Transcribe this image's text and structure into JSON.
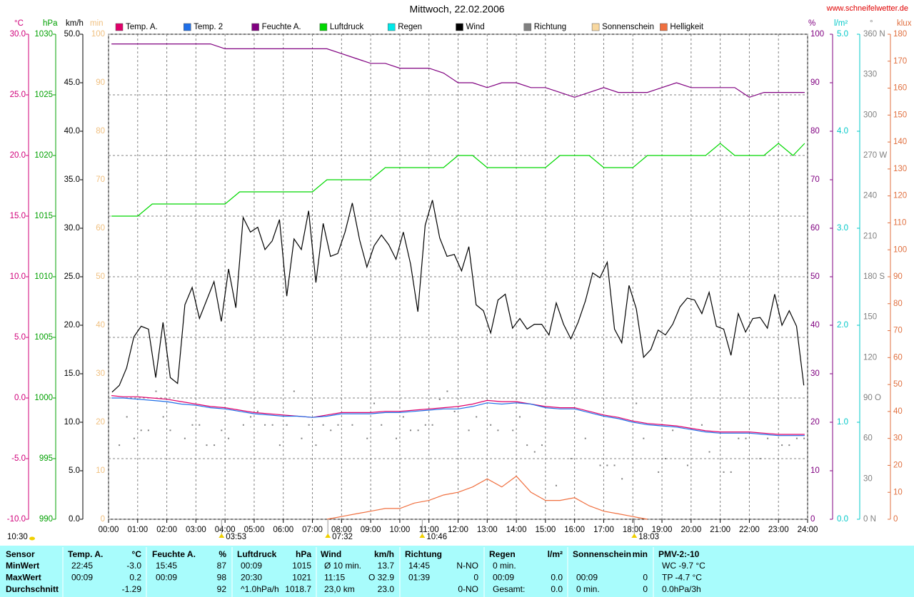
{
  "chart_data": {
    "type": "line",
    "title": "Mittwoch, 22.02.2006",
    "source": "www.schneifelwetter.de",
    "grid": true,
    "grid_axis": "temp",
    "xlim": [
      0,
      24
    ],
    "xticks": [
      {
        "value": 0,
        "label": "00:00"
      },
      {
        "value": 1,
        "label": "01:00"
      },
      {
        "value": 2,
        "label": "02:00"
      },
      {
        "value": 3,
        "label": "03:00"
      },
      {
        "value": 4,
        "label": "04:00"
      },
      {
        "value": 5,
        "label": "05:00"
      },
      {
        "value": 6,
        "label": "06:00"
      },
      {
        "value": 7,
        "label": "07:00"
      },
      {
        "value": 8,
        "label": "08:00"
      },
      {
        "value": 9,
        "label": "09:00"
      },
      {
        "value": 10,
        "label": "10:00"
      },
      {
        "value": 11,
        "label": "11:00"
      },
      {
        "value": 12,
        "label": "12:00"
      },
      {
        "value": 13,
        "label": "13:00"
      },
      {
        "value": 14,
        "label": "14:00"
      },
      {
        "value": 15,
        "label": "15:00"
      },
      {
        "value": 16,
        "label": "16:00"
      },
      {
        "value": 17,
        "label": "17:00"
      },
      {
        "value": 18,
        "label": "18:00"
      },
      {
        "value": 19,
        "label": "19:00"
      },
      {
        "value": 20,
        "label": "20:00"
      },
      {
        "value": 21,
        "label": "21:00"
      },
      {
        "value": 22,
        "label": "22:00"
      },
      {
        "value": 23,
        "label": "23:00"
      },
      {
        "value": 24,
        "label": "24:00"
      }
    ],
    "axes": {
      "temp": {
        "unit": "°C",
        "color": "#d0007a",
        "lim": [
          -10,
          30
        ],
        "ticks": [
          {
            "value": -10,
            "label": "-10.0"
          },
          {
            "value": -5,
            "label": "-5.0"
          },
          {
            "value": 0,
            "label": "0.0"
          },
          {
            "value": 5,
            "label": "5.0"
          },
          {
            "value": 10,
            "label": "10.0"
          },
          {
            "value": 15,
            "label": "15.0"
          },
          {
            "value": 20,
            "label": "20.0"
          },
          {
            "value": 25,
            "label": "25.0"
          },
          {
            "value": 30,
            "label": "30.0"
          }
        ]
      },
      "hpa": {
        "unit": "hPa",
        "color": "#00a000",
        "lim": [
          990,
          1030
        ],
        "ticks": [
          990,
          995,
          1000,
          1005,
          1010,
          1015,
          1020,
          1025,
          1030
        ]
      },
      "kmh": {
        "unit": "km/h",
        "color": "#000000",
        "lim": [
          0,
          50
        ],
        "ticks": [
          {
            "value": 0,
            "label": "0.0"
          },
          {
            "value": 5,
            "label": "5.0"
          },
          {
            "value": 10,
            "label": "10.0"
          },
          {
            "value": 15,
            "label": "15.0"
          },
          {
            "value": 20,
            "label": "20.0"
          },
          {
            "value": 25,
            "label": "25.0"
          },
          {
            "value": 30,
            "label": "30.0"
          },
          {
            "value": 35,
            "label": "35.0"
          },
          {
            "value": 40,
            "label": "40.0"
          },
          {
            "value": 45,
            "label": "45.0"
          },
          {
            "value": 50,
            "label": "50.0"
          }
        ]
      },
      "min": {
        "unit": "min",
        "color": "#f0c080",
        "lim": [
          0,
          100
        ],
        "ticks": [
          0,
          10,
          20,
          30,
          40,
          50,
          60,
          70,
          80,
          90,
          100
        ]
      },
      "pct": {
        "unit": "%",
        "color": "#800080",
        "lim": [
          0,
          100
        ],
        "ticks": [
          0,
          10,
          20,
          30,
          40,
          50,
          60,
          70,
          80,
          90,
          100
        ]
      },
      "rain": {
        "unit": "l/m²",
        "color": "#00c8c8",
        "lim": [
          0,
          5
        ],
        "ticks": [
          {
            "value": 0,
            "label": "0.0"
          },
          {
            "value": 1,
            "label": "1.0"
          },
          {
            "value": 2,
            "label": "2.0"
          },
          {
            "value": 3,
            "label": "3.0"
          },
          {
            "value": 4,
            "label": "4.0"
          },
          {
            "value": 5,
            "label": "5.0"
          }
        ]
      },
      "deg": {
        "unit": "°",
        "color": "#808080",
        "lim": [
          0,
          360
        ],
        "ticks": [
          {
            "value": 0,
            "label": "0 N"
          },
          30,
          60,
          {
            "value": 90,
            "label": "90 O"
          },
          120,
          150,
          {
            "value": 180,
            "label": "180 S"
          },
          210,
          240,
          {
            "value": 270,
            "label": "270 W"
          },
          300,
          330,
          {
            "value": 360,
            "label": "360 N"
          }
        ]
      },
      "klux": {
        "unit": "klux",
        "color": "#e07040",
        "lim": [
          0,
          180
        ],
        "ticks": [
          0,
          10,
          20,
          30,
          40,
          50,
          60,
          70,
          80,
          90,
          100,
          110,
          120,
          130,
          140,
          150,
          160,
          170,
          180
        ]
      }
    },
    "x": [
      0.1,
      0.5,
      1,
      1.5,
      2,
      2.5,
      3,
      3.5,
      4,
      4.5,
      5,
      5.5,
      6,
      6.5,
      7,
      7.5,
      8,
      8.5,
      9,
      9.5,
      10,
      10.5,
      11,
      11.5,
      12,
      12.5,
      13,
      13.5,
      14,
      14.5,
      15,
      15.5,
      16,
      16.5,
      17,
      17.5,
      18,
      18.5,
      19,
      19.5,
      20,
      20.5,
      21,
      21.5,
      22,
      22.5,
      23,
      23.5,
      23.9
    ],
    "series": [
      {
        "name": "Temp. A.",
        "color": "#e0006a",
        "axis": "temp",
        "values": [
          0.2,
          0.1,
          0.1,
          0.0,
          -0.1,
          -0.3,
          -0.5,
          -0.7,
          -0.8,
          -1.0,
          -1.2,
          -1.3,
          -1.4,
          -1.5,
          -1.6,
          -1.4,
          -1.2,
          -1.2,
          -1.2,
          -1.1,
          -1.1,
          -1.0,
          -0.9,
          -0.8,
          -0.7,
          -0.5,
          -0.2,
          -0.3,
          -0.3,
          -0.5,
          -0.7,
          -0.8,
          -0.8,
          -1.1,
          -1.4,
          -1.6,
          -1.9,
          -2.1,
          -2.2,
          -2.3,
          -2.5,
          -2.7,
          -2.8,
          -2.8,
          -2.8,
          -2.9,
          -3.0,
          -3.0,
          -3.0
        ]
      },
      {
        "name": "Temp. 2",
        "color": "#1f6fe8",
        "axis": "temp",
        "values": [
          0.0,
          0.0,
          -0.1,
          -0.2,
          -0.3,
          -0.5,
          -0.6,
          -0.8,
          -0.9,
          -1.1,
          -1.3,
          -1.4,
          -1.5,
          -1.5,
          -1.6,
          -1.5,
          -1.3,
          -1.3,
          -1.3,
          -1.2,
          -1.2,
          -1.1,
          -1.0,
          -0.9,
          -0.9,
          -0.7,
          -0.4,
          -0.5,
          -0.4,
          -0.5,
          -0.8,
          -0.9,
          -0.9,
          -1.2,
          -1.5,
          -1.7,
          -2.0,
          -2.2,
          -2.3,
          -2.4,
          -2.6,
          -2.8,
          -2.9,
          -2.9,
          -2.9,
          -3.0,
          -3.1,
          -3.1,
          -3.1
        ]
      },
      {
        "name": "Feuchte A.",
        "color": "#800080",
        "axis": "pct",
        "values": [
          98,
          98,
          98,
          98,
          98,
          98,
          98,
          98,
          97,
          97,
          97,
          97,
          97,
          97,
          97,
          97,
          96,
          95,
          94,
          94,
          93,
          93,
          93,
          92,
          90,
          90,
          89,
          90,
          90,
          89,
          89,
          88,
          87,
          88,
          89,
          88,
          88,
          88,
          89,
          90,
          89,
          89,
          89,
          89,
          87,
          88,
          88,
          88,
          88
        ]
      },
      {
        "name": "Luftdruck",
        "color": "#00d800",
        "axis": "hpa",
        "values": [
          1015,
          1015,
          1015,
          1016,
          1016,
          1016,
          1016,
          1016,
          1016,
          1017,
          1017,
          1017,
          1017,
          1017,
          1017,
          1018,
          1018,
          1018,
          1018,
          1019,
          1019,
          1019,
          1019,
          1019,
          1020,
          1020,
          1019,
          1019,
          1019,
          1019,
          1019,
          1020,
          1020,
          1020,
          1019,
          1019,
          1019,
          1020,
          1020,
          1020,
          1020,
          1020,
          1021,
          1020,
          1020,
          1020,
          1021,
          1020,
          1021
        ]
      },
      {
        "name": "Regen",
        "color": "#00e8e8"
      },
      {
        "name": "Wind",
        "color": "#000000",
        "axis": "kmh",
        "x": [
          0.12,
          0.37,
          0.62,
          0.87,
          1.12,
          1.37,
          1.62,
          1.87,
          2.12,
          2.37,
          2.62,
          2.87,
          3.12,
          3.37,
          3.62,
          3.87,
          4.12,
          4.37,
          4.62,
          4.87,
          5.12,
          5.37,
          5.62,
          5.87,
          6.12,
          6.37,
          6.62,
          6.87,
          7.12,
          7.37,
          7.62,
          7.87,
          8.12,
          8.37,
          8.62,
          8.87,
          9.12,
          9.37,
          9.62,
          9.87,
          10.12,
          10.37,
          10.62,
          10.87,
          11.12,
          11.37,
          11.62,
          11.87,
          12.12,
          12.37,
          12.62,
          12.87,
          13.12,
          13.37,
          13.62,
          13.87,
          14.12,
          14.37,
          14.62,
          14.87,
          15.12,
          15.37,
          15.62,
          15.87,
          16.12,
          16.37,
          16.62,
          16.87,
          17.12,
          17.37,
          17.62,
          17.87,
          18.12,
          18.37,
          18.62,
          18.87,
          19.12,
          19.37,
          19.62,
          19.87,
          20.12,
          20.37,
          20.62,
          20.87,
          21.12,
          21.37,
          21.62,
          21.87,
          22.12,
          22.37,
          22.62,
          22.87,
          23.12,
          23.37,
          23.62,
          23.87
        ],
        "values": [
          13.1,
          13.8,
          15.6,
          18.8,
          19.9,
          19.6,
          14.6,
          20.3,
          14.6,
          14.0,
          22.1,
          23.9,
          20.7,
          22.6,
          24.5,
          20.4,
          25.8,
          21.8,
          31.1,
          29.6,
          30.1,
          27.8,
          28.7,
          30.9,
          23.0,
          28.9,
          27.8,
          31.8,
          24.4,
          30.5,
          27.1,
          27.4,
          29.6,
          32.6,
          28.8,
          26.0,
          28.2,
          29.3,
          28.3,
          26.8,
          29.6,
          26.3,
          21.4,
          30.3,
          32.9,
          29.0,
          27.1,
          27.3,
          25.6,
          28.1,
          22.1,
          21.5,
          19.2,
          22.6,
          23.2,
          19.7,
          20.7,
          19.6,
          20.1,
          20.1,
          19.0,
          22.3,
          20.1,
          18.6,
          20.3,
          22.5,
          25.4,
          24.9,
          26.5,
          19.6,
          18.2,
          24.1,
          21.7,
          16.7,
          17.5,
          19.5,
          19.0,
          20.1,
          21.9,
          22.8,
          22.6,
          21.2,
          23.4,
          19.9,
          19.6,
          16.9,
          21.2,
          19.3,
          20.7,
          20.8,
          19.7,
          23.2,
          20.0,
          21.5,
          19.9,
          13.8
        ]
      },
      {
        "name": "Richtung",
        "color": "#808080",
        "axis": "deg",
        "marker": "dot",
        "x": [
          0.37,
          0.63,
          0.88,
          1.12,
          1.37,
          1.63,
          1.88,
          2.12,
          2.62,
          2.88,
          3.12,
          3.37,
          3.63,
          3.88,
          4.12,
          4.63,
          4.88,
          5.12,
          5.37,
          5.63,
          5.88,
          6.12,
          6.37,
          6.63,
          6.88,
          7.12,
          7.37,
          7.63,
          7.88,
          8.37,
          8.88,
          9.12,
          9.37,
          9.88,
          10.12,
          10.37,
          10.63,
          10.88,
          11.12,
          11.37,
          11.63,
          11.88,
          12.37,
          12.63,
          13.12,
          13.37,
          13.88,
          14.12,
          14.37,
          14.63,
          14.88,
          15.37,
          15.88,
          16.37,
          16.88,
          17.12,
          17.37,
          17.63,
          18.12,
          18.37,
          18.88,
          19.12,
          19.37,
          19.88,
          20.37,
          20.63,
          21.12,
          21.37,
          21.63,
          21.88,
          22.37,
          22.63,
          23.12,
          23.37,
          23.63,
          23.88
        ],
        "values": [
          55,
          76,
          60,
          66,
          66,
          95,
          76,
          66,
          60,
          70,
          70,
          55,
          55,
          66,
          60,
          70,
          76,
          80,
          70,
          70,
          55,
          70,
          95,
          60,
          70,
          55,
          70,
          66,
          70,
          70,
          60,
          86,
          70,
          60,
          76,
          66,
          66,
          70,
          70,
          89,
          95,
          80,
          66,
          76,
          70,
          66,
          66,
          76,
          55,
          50,
          55,
          25,
          45,
          60,
          40,
          40,
          40,
          30,
          86,
          60,
          35,
          45,
          66,
          40,
          70,
          50,
          35,
          35,
          60,
          60,
          45,
          60,
          55,
          55,
          60,
          60
        ]
      },
      {
        "name": "Sonnenschein",
        "color": "#f8d8a0"
      },
      {
        "name": "Helligkeit",
        "color": "#f07040",
        "axis": "klux",
        "values": [
          null,
          null,
          null,
          null,
          null,
          null,
          null,
          null,
          null,
          null,
          null,
          null,
          null,
          null,
          null,
          0,
          1,
          2,
          3,
          4,
          4,
          6,
          7,
          9,
          10,
          12,
          15,
          12,
          16,
          10,
          7,
          7,
          8,
          5,
          3,
          2,
          1,
          0,
          null,
          null,
          null,
          null,
          null,
          null,
          null,
          null,
          null,
          null,
          null
        ]
      }
    ],
    "markers": [
      {
        "x": 3.88,
        "label": "03:53"
      },
      {
        "x": 7.53,
        "label": "07:32"
      },
      {
        "x": 10.77,
        "label": "10:46"
      },
      {
        "x": 18.05,
        "label": "18:03"
      }
    ],
    "day_length": "10:30"
  },
  "table": {
    "columns": [
      {
        "name": "Sensor"
      },
      {
        "name": "Temp. A.",
        "unit": "°C"
      },
      {
        "name": "Feuchte A.",
        "unit": "%"
      },
      {
        "name": "Luftdruck",
        "unit": "hPa"
      },
      {
        "name": "Wind",
        "unit": "km/h"
      },
      {
        "name": "Richtung"
      },
      {
        "name": "Regen",
        "unit": "l/m²"
      },
      {
        "name": "Sonnenschein",
        "unit": "min"
      },
      {
        "name": "PMV-2:-10"
      }
    ],
    "rows": [
      {
        "label": "MinWert",
        "cells": [
          {
            "l": "22:45",
            "r": "-3.0"
          },
          {
            "l": "15:45",
            "r": "87"
          },
          {
            "l": "00:09",
            "r": "1015"
          },
          {
            "l": "Ø 10 min.",
            "r": "13.7"
          },
          {
            "l": "14:45",
            "r": "N-NO"
          },
          {
            "l": "0 min."
          },
          {},
          {
            "l": "WC -9.7 °C"
          }
        ]
      },
      {
        "label": "MaxWert",
        "cells": [
          {
            "l": "00:09",
            "r": "0.2"
          },
          {
            "l": "00:09",
            "r": "98"
          },
          {
            "l": "20:30",
            "r": "1021"
          },
          {
            "l": "11:15",
            "r": "O 32.9"
          },
          {
            "l": "01:39",
            "r": "0"
          },
          {
            "l": "00:09",
            "r": "0.0"
          },
          {
            "l": "00:09",
            "r": "0"
          },
          {
            "l": "TP -4.7 °C"
          }
        ]
      },
      {
        "label": "Durchschnitt",
        "cells": [
          {
            "r": "-1.29"
          },
          {
            "r": "92"
          },
          {
            "l": "^1.0hPa/h",
            "r": "1018.7"
          },
          {
            "l": "23,0 km",
            "r": "23.0"
          },
          {
            "r": "0-NO"
          },
          {
            "l": "Gesamt:",
            "r": "0.0"
          },
          {
            "l": "0 min.",
            "r": "0"
          },
          {
            "l": "0.0hPa/3h"
          }
        ]
      }
    ]
  }
}
